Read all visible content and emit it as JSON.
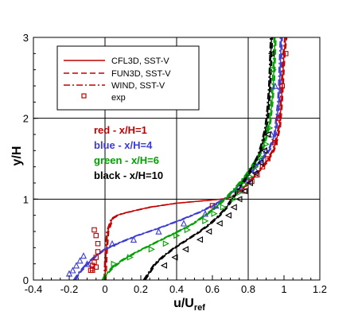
{
  "chart_data": {
    "type": "line",
    "xlabel": "u/U",
    "xlabel_sub": "ref",
    "ylabel": "y/H",
    "xlim": [
      -0.4,
      1.2
    ],
    "ylim": [
      0,
      3
    ],
    "xticks": [
      "-0.4",
      "-0.2",
      "0",
      "0.2",
      "0.4",
      "0.6",
      "0.8",
      "1",
      "1.2"
    ],
    "yticks": [
      "0",
      "1",
      "2",
      "3"
    ],
    "grid": true,
    "legend_position": "top-left",
    "legend": [
      {
        "label": "CFL3D, SST-V",
        "style": "solid"
      },
      {
        "label": "FUN3D, SST-V",
        "style": "dashed"
      },
      {
        "label": "WIND, SST-V",
        "style": "dashdot"
      },
      {
        "label": "exp",
        "style": "marker"
      }
    ],
    "annotations": [
      {
        "text": "red - x/H=1",
        "color": "#c00000"
      },
      {
        "text": "blue - x/H=4",
        "color": "#3c3cd0"
      },
      {
        "text": "green - x/H=6",
        "color": "#00a000"
      },
      {
        "text": "black - x/H=10",
        "color": "#000000"
      }
    ],
    "series": [
      {
        "name": "red - x/H=1",
        "color": "#c00000",
        "marker": "square",
        "model": {
          "x": [
            0,
            0.005,
            0.015,
            0.04,
            0.08,
            0.15,
            0.25,
            0.4,
            0.55,
            0.65,
            0.7,
            0.74,
            0.78,
            0.82,
            0.86,
            0.9,
            0.94,
            0.96,
            0.975,
            0.98,
            0.985,
            0.99,
            0.995,
            1.0,
            1.01
          ],
          "y": [
            0,
            0.3,
            0.6,
            0.76,
            0.81,
            0.85,
            0.9,
            0.95,
            0.98,
            1.0,
            1.02,
            1.07,
            1.15,
            1.25,
            1.35,
            1.45,
            1.6,
            1.75,
            1.9,
            2.05,
            2.2,
            2.4,
            2.6,
            2.8,
            3.0
          ]
        },
        "exp": {
          "x": [
            -0.08,
            -0.07,
            -0.07,
            -0.06,
            -0.05,
            -0.04,
            -0.04,
            -0.05,
            -0.06,
            -0.07,
            -0.05,
            0.6,
            0.78,
            0.82,
            0.85,
            0.88,
            0.91,
            0.95,
            0.97,
            0.99,
            1.01
          ],
          "y": [
            0.12,
            0.14,
            0.18,
            0.22,
            0.28,
            0.35,
            0.45,
            0.55,
            0.62,
            0.12,
            0.16,
            0.92,
            1.1,
            1.22,
            1.3,
            1.4,
            1.5,
            1.7,
            2.0,
            2.4,
            2.8
          ]
        }
      },
      {
        "name": "blue - x/H=4",
        "color": "#3c3cd0",
        "marker": "triangle-up",
        "model": {
          "x": [
            -0.17,
            -0.14,
            -0.1,
            -0.05,
            0.0,
            0.08,
            0.18,
            0.3,
            0.42,
            0.53,
            0.62,
            0.68,
            0.72,
            0.76,
            0.8,
            0.84,
            0.88,
            0.92,
            0.95,
            0.96,
            0.97,
            0.975,
            0.98,
            0.985
          ],
          "y": [
            0,
            0.1,
            0.2,
            0.3,
            0.38,
            0.46,
            0.55,
            0.64,
            0.74,
            0.84,
            0.94,
            1.02,
            1.1,
            1.2,
            1.3,
            1.4,
            1.5,
            1.62,
            1.8,
            2.0,
            2.2,
            2.4,
            2.7,
            3.0
          ]
        },
        "exp": {
          "x": [
            -0.2,
            -0.18,
            -0.16,
            -0.14,
            -0.12,
            -0.1,
            0.04,
            0.16,
            0.3,
            0.44,
            0.56,
            0.62,
            0.76,
            0.8,
            0.84,
            0.87,
            0.9,
            0.93,
            0.95
          ],
          "y": [
            0.08,
            0.12,
            0.18,
            0.24,
            0.3,
            0.2,
            0.45,
            0.5,
            0.6,
            0.7,
            0.82,
            0.92,
            1.12,
            1.24,
            1.36,
            1.48,
            1.6,
            1.8,
            2.4
          ]
        }
      },
      {
        "name": "green - x/H=6",
        "color": "#00a000",
        "marker": "triangle-right",
        "model": {
          "x": [
            -0.01,
            0.0,
            0.04,
            0.1,
            0.18,
            0.28,
            0.38,
            0.48,
            0.56,
            0.62,
            0.67,
            0.7,
            0.73,
            0.76,
            0.79,
            0.82,
            0.85,
            0.88,
            0.9,
            0.92,
            0.93,
            0.94,
            0.945,
            0.95
          ],
          "y": [
            0,
            0.05,
            0.15,
            0.25,
            0.35,
            0.46,
            0.57,
            0.68,
            0.8,
            0.9,
            1.0,
            1.07,
            1.14,
            1.22,
            1.3,
            1.4,
            1.5,
            1.62,
            1.78,
            1.95,
            2.15,
            2.4,
            2.7,
            3.0
          ]
        },
        "exp": {
          "x": [
            0.05,
            0.14,
            0.26,
            0.34,
            0.4,
            0.46,
            0.56,
            0.61,
            0.66,
            0.72,
            0.75,
            0.78,
            0.81,
            0.84,
            0.87,
            0.9,
            0.92,
            0.94
          ],
          "y": [
            0.2,
            0.28,
            0.38,
            0.45,
            0.55,
            0.62,
            0.73,
            0.82,
            0.9,
            1.0,
            1.08,
            1.18,
            1.28,
            1.4,
            1.52,
            1.68,
            1.88,
            2.6
          ]
        }
      },
      {
        "name": "black - x/H=10",
        "color": "#000000",
        "marker": "triangle-left",
        "model": {
          "x": [
            0.22,
            0.25,
            0.28,
            0.33,
            0.39,
            0.46,
            0.53,
            0.59,
            0.64,
            0.68,
            0.71,
            0.74,
            0.77,
            0.8,
            0.83,
            0.86,
            0.88,
            0.9,
            0.91,
            0.92,
            0.925,
            0.93
          ],
          "y": [
            0,
            0.1,
            0.2,
            0.3,
            0.4,
            0.5,
            0.6,
            0.7,
            0.8,
            0.9,
            1.0,
            1.1,
            1.2,
            1.3,
            1.42,
            1.55,
            1.7,
            1.9,
            2.1,
            2.4,
            2.7,
            3.0
          ]
        },
        "exp": {
          "x": [
            0.33,
            0.39,
            0.45,
            0.53,
            0.58,
            0.64,
            0.69,
            0.72,
            0.75,
            0.78,
            0.81,
            0.84,
            0.87,
            0.89,
            0.91,
            0.93
          ],
          "y": [
            0.18,
            0.28,
            0.38,
            0.5,
            0.6,
            0.7,
            0.8,
            0.9,
            1.0,
            1.1,
            1.2,
            1.32,
            1.45,
            1.6,
            1.8,
            2.8
          ]
        }
      }
    ]
  }
}
